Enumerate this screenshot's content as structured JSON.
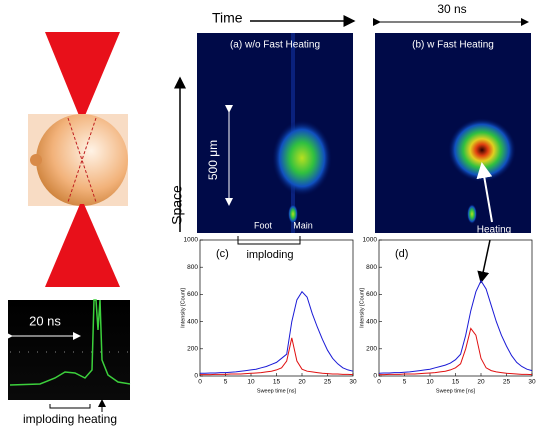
{
  "labels": {
    "time": "Time",
    "span": "30 ns",
    "panel_a": "(a)  w/o Fast Heating",
    "panel_b": "(b)  w Fast Heating",
    "scale": "500 μm",
    "space": "Space",
    "foot": "Foot",
    "main": "Main",
    "imploding": "imploding",
    "heating": "Heating",
    "inset_span": "20 ns",
    "inset_caption": "imploding heating"
  },
  "chart_data": [
    {
      "type": "line",
      "title": "(c)",
      "xlabel": "Sweep time [ns]",
      "ylabel": "Intensity [Count]",
      "x": [
        0,
        1,
        2,
        3,
        4,
        5,
        6,
        7,
        8,
        9,
        10,
        11,
        12,
        13,
        14,
        15,
        16,
        17,
        18,
        19,
        20,
        21,
        22,
        23,
        24,
        25,
        26,
        27,
        28,
        29,
        30
      ],
      "series": [
        {
          "color": "#1a1ad6",
          "values": [
            20,
            20,
            22,
            22,
            25,
            25,
            28,
            30,
            35,
            40,
            45,
            50,
            60,
            70,
            85,
            100,
            130,
            160,
            400,
            560,
            620,
            580,
            460,
            360,
            270,
            190,
            130,
            90,
            60,
            45,
            35
          ]
        },
        {
          "color": "#e01010",
          "values": [
            10,
            10,
            10,
            12,
            12,
            12,
            15,
            15,
            15,
            18,
            20,
            22,
            25,
            30,
            35,
            45,
            60,
            110,
            280,
            110,
            50,
            35,
            30,
            25,
            20,
            18,
            15,
            15,
            12,
            12,
            10
          ]
        }
      ],
      "xlim": [
        0,
        30
      ],
      "xticks": [
        0,
        5,
        10,
        15,
        20,
        25,
        30
      ],
      "ylim": [
        0,
        1000
      ],
      "yticks": [
        0,
        200,
        400,
        600,
        800,
        1000
      ]
    },
    {
      "type": "line",
      "title": "(d)",
      "xlabel": "Sweep time [ns]",
      "ylabel": "Intensity [Count]",
      "x": [
        0,
        1,
        2,
        3,
        4,
        5,
        6,
        7,
        8,
        9,
        10,
        11,
        12,
        13,
        14,
        15,
        16,
        17,
        18,
        19,
        20,
        21,
        22,
        23,
        24,
        25,
        26,
        27,
        28,
        29,
        30
      ],
      "series": [
        {
          "color": "#1a1ad6",
          "values": [
            20,
            22,
            22,
            25,
            25,
            28,
            30,
            35,
            40,
            45,
            50,
            60,
            70,
            80,
            95,
            120,
            160,
            300,
            480,
            620,
            700,
            640,
            520,
            400,
            300,
            220,
            150,
            100,
            70,
            50,
            40
          ]
        },
        {
          "color": "#e01010",
          "values": [
            10,
            10,
            12,
            12,
            12,
            15,
            15,
            15,
            18,
            20,
            22,
            25,
            30,
            35,
            45,
            60,
            90,
            200,
            350,
            300,
            130,
            60,
            40,
            30,
            25,
            20,
            18,
            15,
            12,
            12,
            10
          ]
        }
      ],
      "xlim": [
        0,
        30
      ],
      "xticks": [
        0,
        5,
        10,
        15,
        20,
        25,
        30
      ],
      "ylim": [
        0,
        1000
      ],
      "yticks": [
        0,
        200,
        400,
        600,
        800,
        1000
      ]
    }
  ]
}
